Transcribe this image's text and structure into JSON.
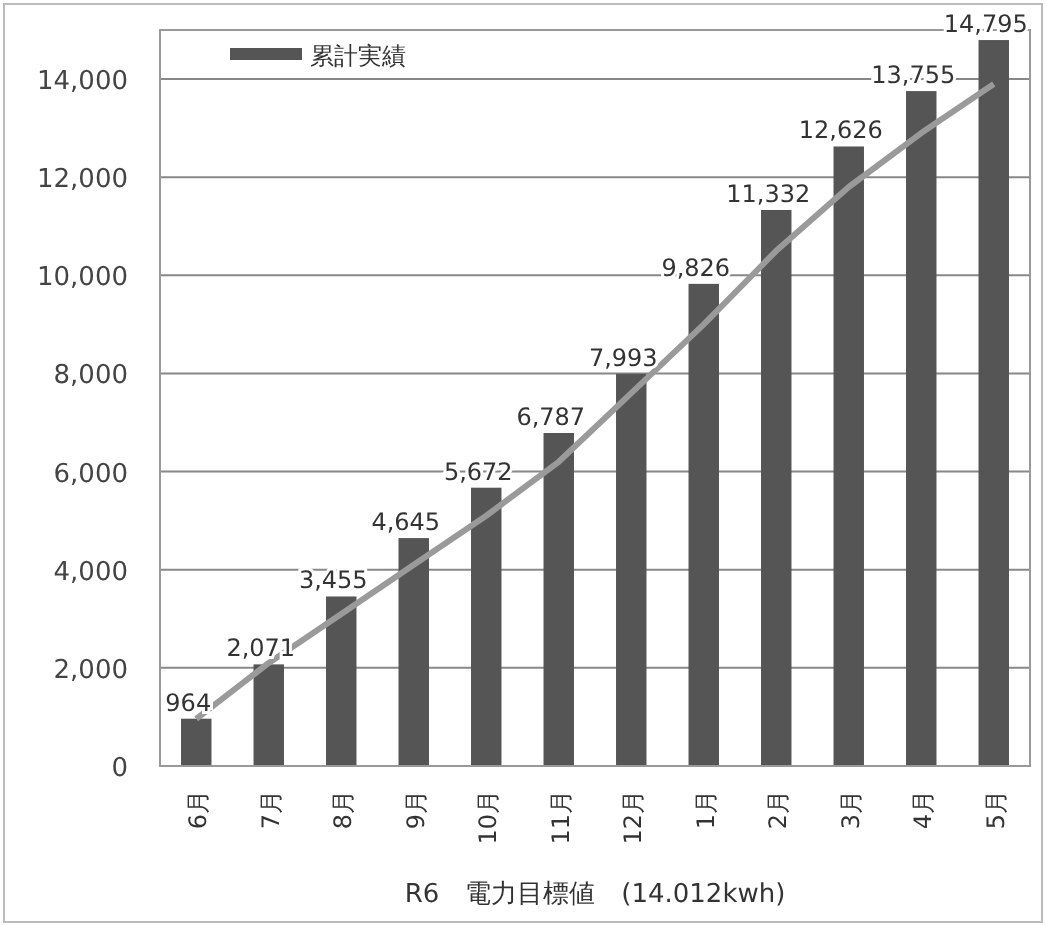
{
  "chart_data": {
    "type": "bar",
    "xlabel": "R6　電力目標値　(14.012kwh)",
    "categories": [
      "6月",
      "7月",
      "8月",
      "9月",
      "10月",
      "11月",
      "12月",
      "1月",
      "2月",
      "3月",
      "4月",
      "5月"
    ],
    "series": [
      {
        "name": "累計実績",
        "color": "#555555",
        "values": [
          964,
          2071,
          3455,
          4645,
          5672,
          6787,
          7993,
          9826,
          11332,
          12626,
          13755,
          14795
        ],
        "value_labels": [
          "964",
          "2,071",
          "3,455",
          "4,645",
          "5,672",
          "6,787",
          "7,993",
          "9,826",
          "11,332",
          "12,626",
          "13,755",
          "14,795"
        ]
      },
      {
        "type": "line",
        "color": "#9a9a9a",
        "values": [
          960,
          2100,
          3100,
          4100,
          5100,
          6200,
          7600,
          9000,
          10500,
          11800,
          12900,
          13900
        ]
      }
    ],
    "ylim": [
      0,
      15000
    ],
    "yticks": [
      {
        "value": 0,
        "label": "0"
      },
      {
        "value": 2000,
        "label": "2,000"
      },
      {
        "value": 4000,
        "label": "4,000"
      },
      {
        "value": 6000,
        "label": "6,000"
      },
      {
        "value": 8000,
        "label": "8,000"
      },
      {
        "value": 10000,
        "label": "10,000"
      },
      {
        "value": 12000,
        "label": "12,000"
      },
      {
        "value": 14000,
        "label": "14,000"
      }
    ],
    "grid": "y",
    "legend": "top left"
  }
}
